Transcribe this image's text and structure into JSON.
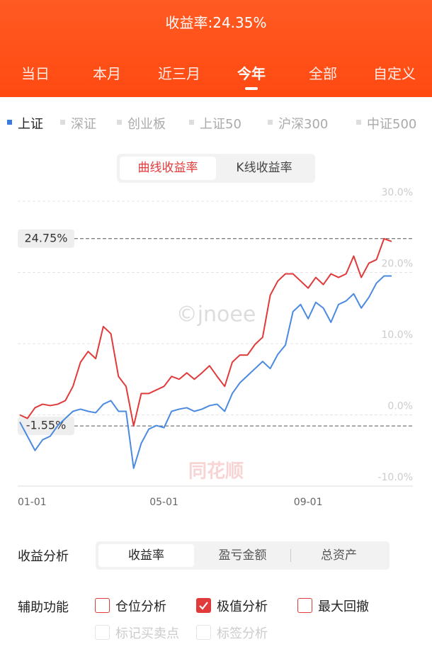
{
  "header": {
    "title": "收益率:24.35%",
    "tabs": [
      "当日",
      "本月",
      "近三月",
      "今年",
      "全部",
      "自定义"
    ],
    "active_tab": 3
  },
  "indices": {
    "items": [
      "上证",
      "深证",
      "创业板",
      "上证50",
      "沪深300",
      "中证500"
    ],
    "active": 0,
    "active_color": "#3b7be0"
  },
  "mode_toggle": {
    "items": [
      "曲线收益率",
      "K线收益率"
    ],
    "active": 0
  },
  "chart_data": {
    "type": "line",
    "categories": [
      "01-01",
      null,
      null,
      null,
      null,
      null,
      null,
      null,
      null,
      null,
      null,
      null,
      null,
      null,
      null,
      null,
      null,
      null,
      null,
      "05-01",
      null,
      null,
      null,
      null,
      null,
      null,
      null,
      null,
      null,
      null,
      null,
      null,
      null,
      null,
      null,
      null,
      null,
      null,
      "09-01",
      null,
      null,
      null,
      null,
      null,
      null,
      null,
      null,
      null,
      null,
      null
    ],
    "series": [
      {
        "color": "#e03a3a",
        "values": [
          0,
          -0.5,
          1,
          1.5,
          1.3,
          1.5,
          2,
          4,
          7.4,
          8.9,
          7.9,
          12.4,
          11.4,
          5.4,
          4,
          -1.55,
          3,
          3,
          3.5,
          4,
          5.4,
          5,
          5.9,
          5,
          5.9,
          6.9,
          5.4,
          4,
          7.4,
          8.4,
          8.4,
          9.9,
          10.9,
          16.8,
          18.8,
          19.8,
          19.8,
          18.8,
          17.8,
          19.3,
          18.3,
          19.8,
          19.3,
          19.8,
          22.3,
          19.3,
          21.3,
          21.8,
          24.75,
          24.35
        ]
      },
      {
        "color": "#4a8ae0",
        "values": [
          -1,
          -3,
          -5,
          -3.5,
          -3,
          -1.5,
          -0.5,
          0.5,
          0.8,
          0.5,
          0.3,
          1.5,
          2,
          0.5,
          0.5,
          -7.5,
          -4,
          -2,
          -1.5,
          -1.8,
          0.5,
          0.8,
          1,
          0.5,
          0.8,
          1.3,
          1.5,
          0.5,
          3,
          4.5,
          5.5,
          6.5,
          7.5,
          6.5,
          8.5,
          9.8,
          14.5,
          15.5,
          13.5,
          15.8,
          15,
          13,
          15.5,
          16,
          17,
          15,
          16.5,
          18.5,
          19.5,
          19.5
        ]
      }
    ],
    "ylim": [
      -10,
      30
    ],
    "yticks": [
      {
        "value": 30,
        "label": "30.0%"
      },
      {
        "value": 20,
        "label": "20.0%"
      },
      {
        "value": 10,
        "label": "10.0%"
      },
      {
        "value": 0,
        "label": "0.0%"
      },
      {
        "value": -10,
        "label": "-10.0%"
      }
    ],
    "grid": true,
    "annotations": [
      {
        "value": 24.75,
        "label": "24.75%"
      },
      {
        "value": -1.55,
        "label": "-1.55%"
      }
    ],
    "watermarks": [
      "©jnoee",
      "同花顺"
    ]
  },
  "analysis": {
    "label": "收益分析",
    "items": [
      "收益率",
      "盈亏金额",
      "总资产"
    ],
    "active": 0
  },
  "aux": {
    "label": "辅助功能",
    "items": [
      {
        "label": "仓位分析",
        "checked": false,
        "disabled": false
      },
      {
        "label": "极值分析",
        "checked": true,
        "disabled": false
      },
      {
        "label": "最大回撤",
        "checked": false,
        "disabled": false
      },
      {
        "label": "标记买卖点",
        "checked": false,
        "disabled": true
      },
      {
        "label": "标签分析",
        "checked": false,
        "disabled": true
      }
    ]
  }
}
